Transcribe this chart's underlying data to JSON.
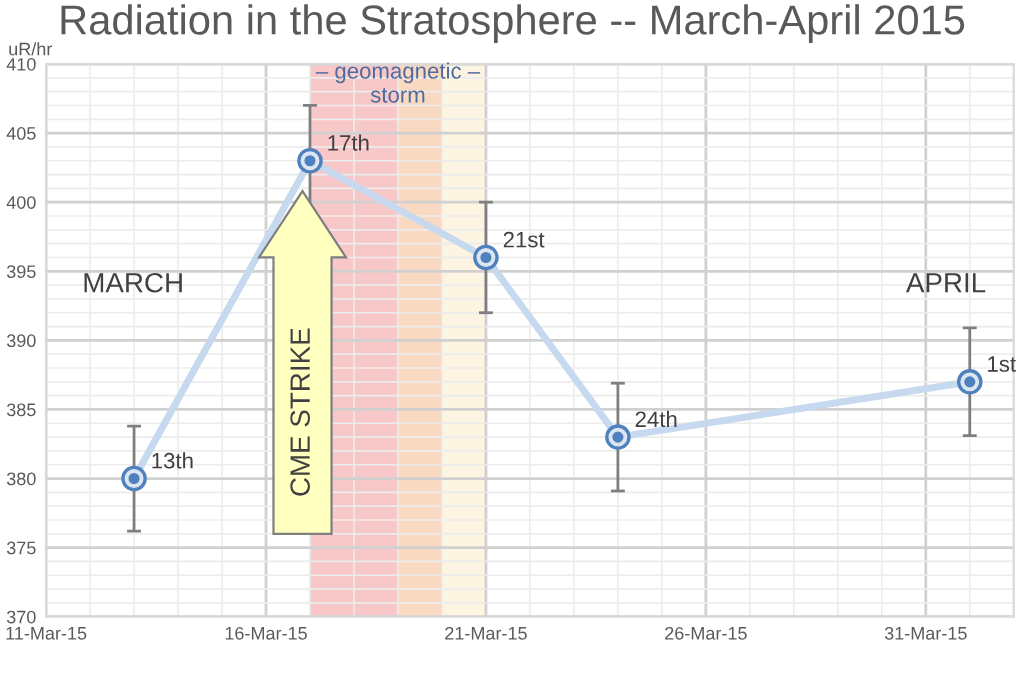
{
  "chart_data": {
    "type": "line",
    "title": "Radiation in the Stratosphere -- March-April 2015",
    "ylabel": "uR/hr",
    "x": [
      "2015-03-13",
      "2015-03-17",
      "2015-03-21",
      "2015-03-24",
      "2015-04-01"
    ],
    "series": [
      {
        "color": "#c6d9ee",
        "values": [
          380,
          403,
          396,
          383,
          387
        ],
        "errors": [
          3.8,
          4,
          4,
          3.9,
          3.9
        ]
      }
    ],
    "marker": "circle",
    "line_style": "solid",
    "grid": true,
    "xlim": [
      "2015-03-11",
      "2015-04-02"
    ],
    "ylim": [
      370,
      410
    ],
    "xticks": [
      {
        "value": "2015-03-11",
        "label": "11-Mar-15"
      },
      {
        "value": "2015-03-16",
        "label": "16-Mar-15"
      },
      {
        "value": "2015-03-21",
        "label": "21-Mar-15"
      },
      {
        "value": "2015-03-26",
        "label": "26-Mar-15"
      },
      {
        "value": "2015-03-31",
        "label": "31-Mar-15"
      }
    ],
    "yticks": [
      370,
      375,
      380,
      385,
      390,
      395,
      400,
      405,
      410
    ],
    "bands": [
      {
        "axis": "x",
        "from": "2015-03-17",
        "to": "2015-03-19",
        "color": "#f8c8c8"
      },
      {
        "axis": "x",
        "from": "2015-03-19",
        "to": "2015-03-20",
        "color": "#fad9c2"
      },
      {
        "axis": "x",
        "from": "2015-03-20",
        "to": "2015-03-21",
        "color": "#fdf5e2"
      }
    ],
    "annotations": [
      {
        "text": "13th",
        "x": "2015-03-13",
        "y": 380
      },
      {
        "text": "17th",
        "x": "2015-03-17",
        "y": 403
      },
      {
        "text": "21st",
        "x": "2015-03-21",
        "y": 396
      },
      {
        "text": "24th",
        "x": "2015-03-24",
        "y": 383
      },
      {
        "text": "1st",
        "x": "2015-04-01",
        "y": 387
      },
      {
        "text": "– geomagnetic –\nstorm",
        "x": "2015-03-19",
        "y": 408.5
      },
      "MARCH",
      "APRIL",
      "CME STRIKE"
    ]
  }
}
